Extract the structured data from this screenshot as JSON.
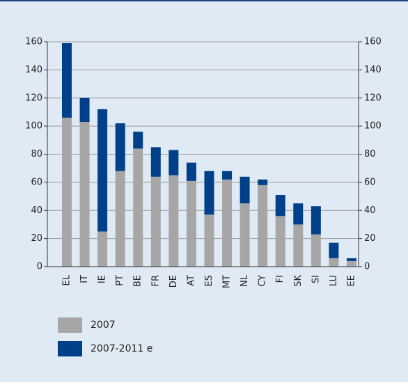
{
  "chart_data": {
    "type": "stacked_bar",
    "categories": [
      "EL",
      "IT",
      "IE",
      "PT",
      "BE",
      "FR",
      "DE",
      "AT",
      "ES",
      "MT",
      "NL",
      "CY",
      "FI",
      "SK",
      "SI",
      "LU",
      "EE"
    ],
    "series": [
      {
        "name": "2007",
        "color": "#a6a6a6",
        "values": [
          106,
          103,
          25,
          68,
          84,
          64,
          65,
          61,
          37,
          62,
          45,
          58,
          36,
          30,
          23,
          6,
          4
        ]
      },
      {
        "name": "2007-2011 e",
        "color": "#004088",
        "values": [
          53,
          17,
          87,
          34,
          12,
          21,
          18,
          13,
          31,
          6,
          19,
          4,
          15,
          15,
          20,
          11,
          2
        ]
      }
    ],
    "ylim": [
      0,
      160
    ],
    "yticks": [
      0,
      20,
      40,
      60,
      80,
      100,
      120,
      140,
      160
    ],
    "grid": true
  }
}
